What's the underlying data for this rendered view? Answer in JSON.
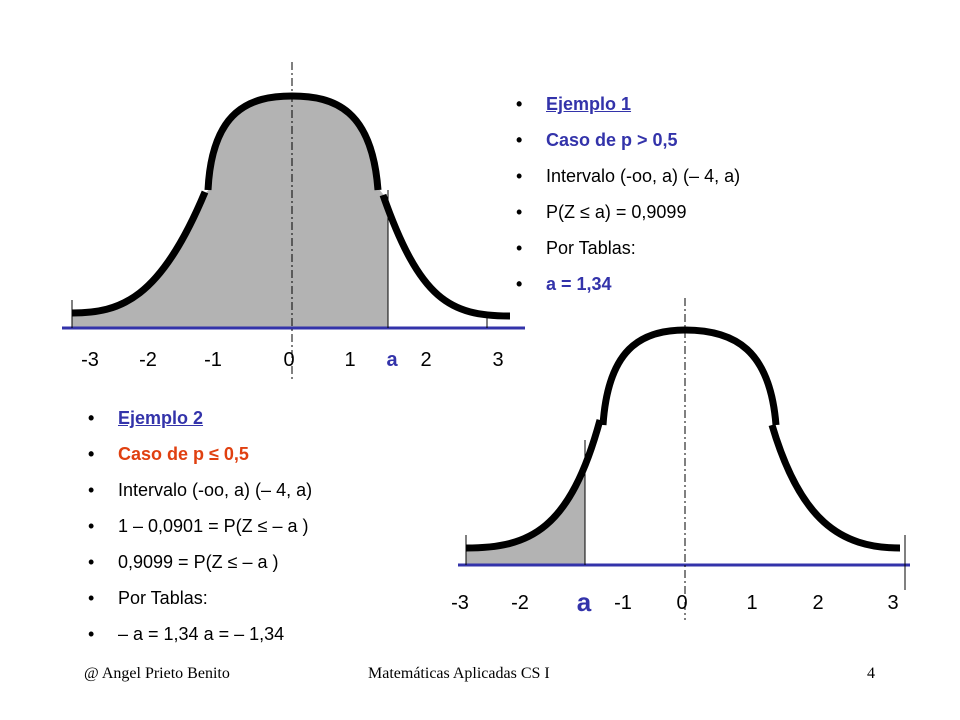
{
  "graph1": {
    "ticks": [
      "-3",
      "-2",
      "-1",
      "0",
      "1",
      "a",
      "2",
      "3"
    ]
  },
  "example1": {
    "items": [
      "Ejemplo 1",
      "Caso de p > 0,5",
      "Intervalo (-oo, a)  (– 4, a)",
      "P(Z ≤ a) = 0,9099",
      "Por Tablas:",
      "a = 1,34"
    ]
  },
  "graph2": {
    "ticks": [
      "-3",
      "-2",
      "a",
      "-1",
      "0",
      "1",
      "2",
      "3"
    ]
  },
  "example2": {
    "items": [
      "Ejemplo 2",
      "Caso de p ≤ 0,5",
      "Intervalo (-oo, a)  (– 4, a)",
      "1 – 0,0901 = P(Z ≤ – a )",
      "0,9099 = P(Z ≤ – a )",
      "Por Tablas:",
      "– a  = 1,34  a = – 1,34"
    ]
  },
  "footer": {
    "author": "@  Angel Prieto Benito",
    "course": "Matemáticas Aplicadas CS I",
    "page": "4"
  },
  "colors": {
    "accent_blue": "#3333aa",
    "accent_orange": "#e04010",
    "fill_gray": "#b3b3b3"
  }
}
